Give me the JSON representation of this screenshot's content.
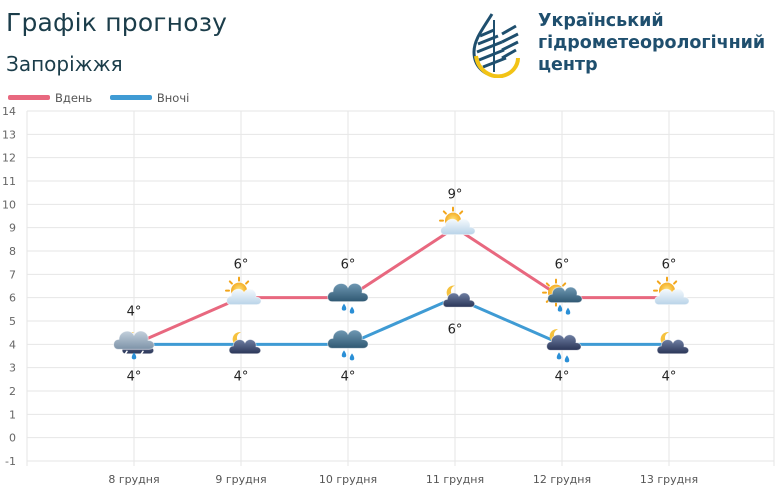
{
  "header": {
    "title": "Графік прогнозу",
    "city": "Запоріжжя",
    "org_name": "Український\nгідрометеорологічний\nцентр"
  },
  "colors": {
    "day": "#e8687f",
    "night": "#3f9bd4",
    "grid": "#e6e6e6",
    "title": "#1b3d4a"
  },
  "chart_data": {
    "type": "line",
    "title": "Графік прогнозу",
    "subtitle": "Запоріжжя",
    "categories": [
      "8 грудня",
      "9 грудня",
      "10 грудня",
      "11 грудня",
      "12 грудня",
      "13 грудня"
    ],
    "series": [
      {
        "name": "Вдень",
        "values": [
          4,
          6,
          6,
          9,
          6,
          6
        ],
        "labels": [
          "4°",
          "6°",
          "6°",
          "9°",
          "6°",
          "6°"
        ],
        "icons": [
          "cloud-rain-sleet-icon",
          "sun-cloud-icon",
          "cloud-rain-icon",
          "sun-cloud-icon",
          "sun-cloud-rain-icon",
          "sun-cloud-icon"
        ]
      },
      {
        "name": "Вночі",
        "values": [
          4,
          4,
          4,
          6,
          4,
          4
        ],
        "labels": [
          "4°",
          "4°",
          "4°",
          "6°",
          "4°",
          "4°"
        ],
        "icons": [
          "moon-cloud-icon",
          "moon-cloud-icon",
          "cloud-rain-icon",
          "moon-cloud-icon",
          "moon-cloud-rain-icon",
          "moon-cloud-icon"
        ]
      }
    ],
    "yticks": [
      14,
      13,
      12,
      11,
      10,
      9,
      8,
      7,
      6,
      5,
      4,
      3,
      2,
      1,
      0,
      -1
    ],
    "ylim": [
      -1,
      14
    ],
    "xlabel": "",
    "ylabel": "",
    "grid": true,
    "legend": "top-left"
  }
}
